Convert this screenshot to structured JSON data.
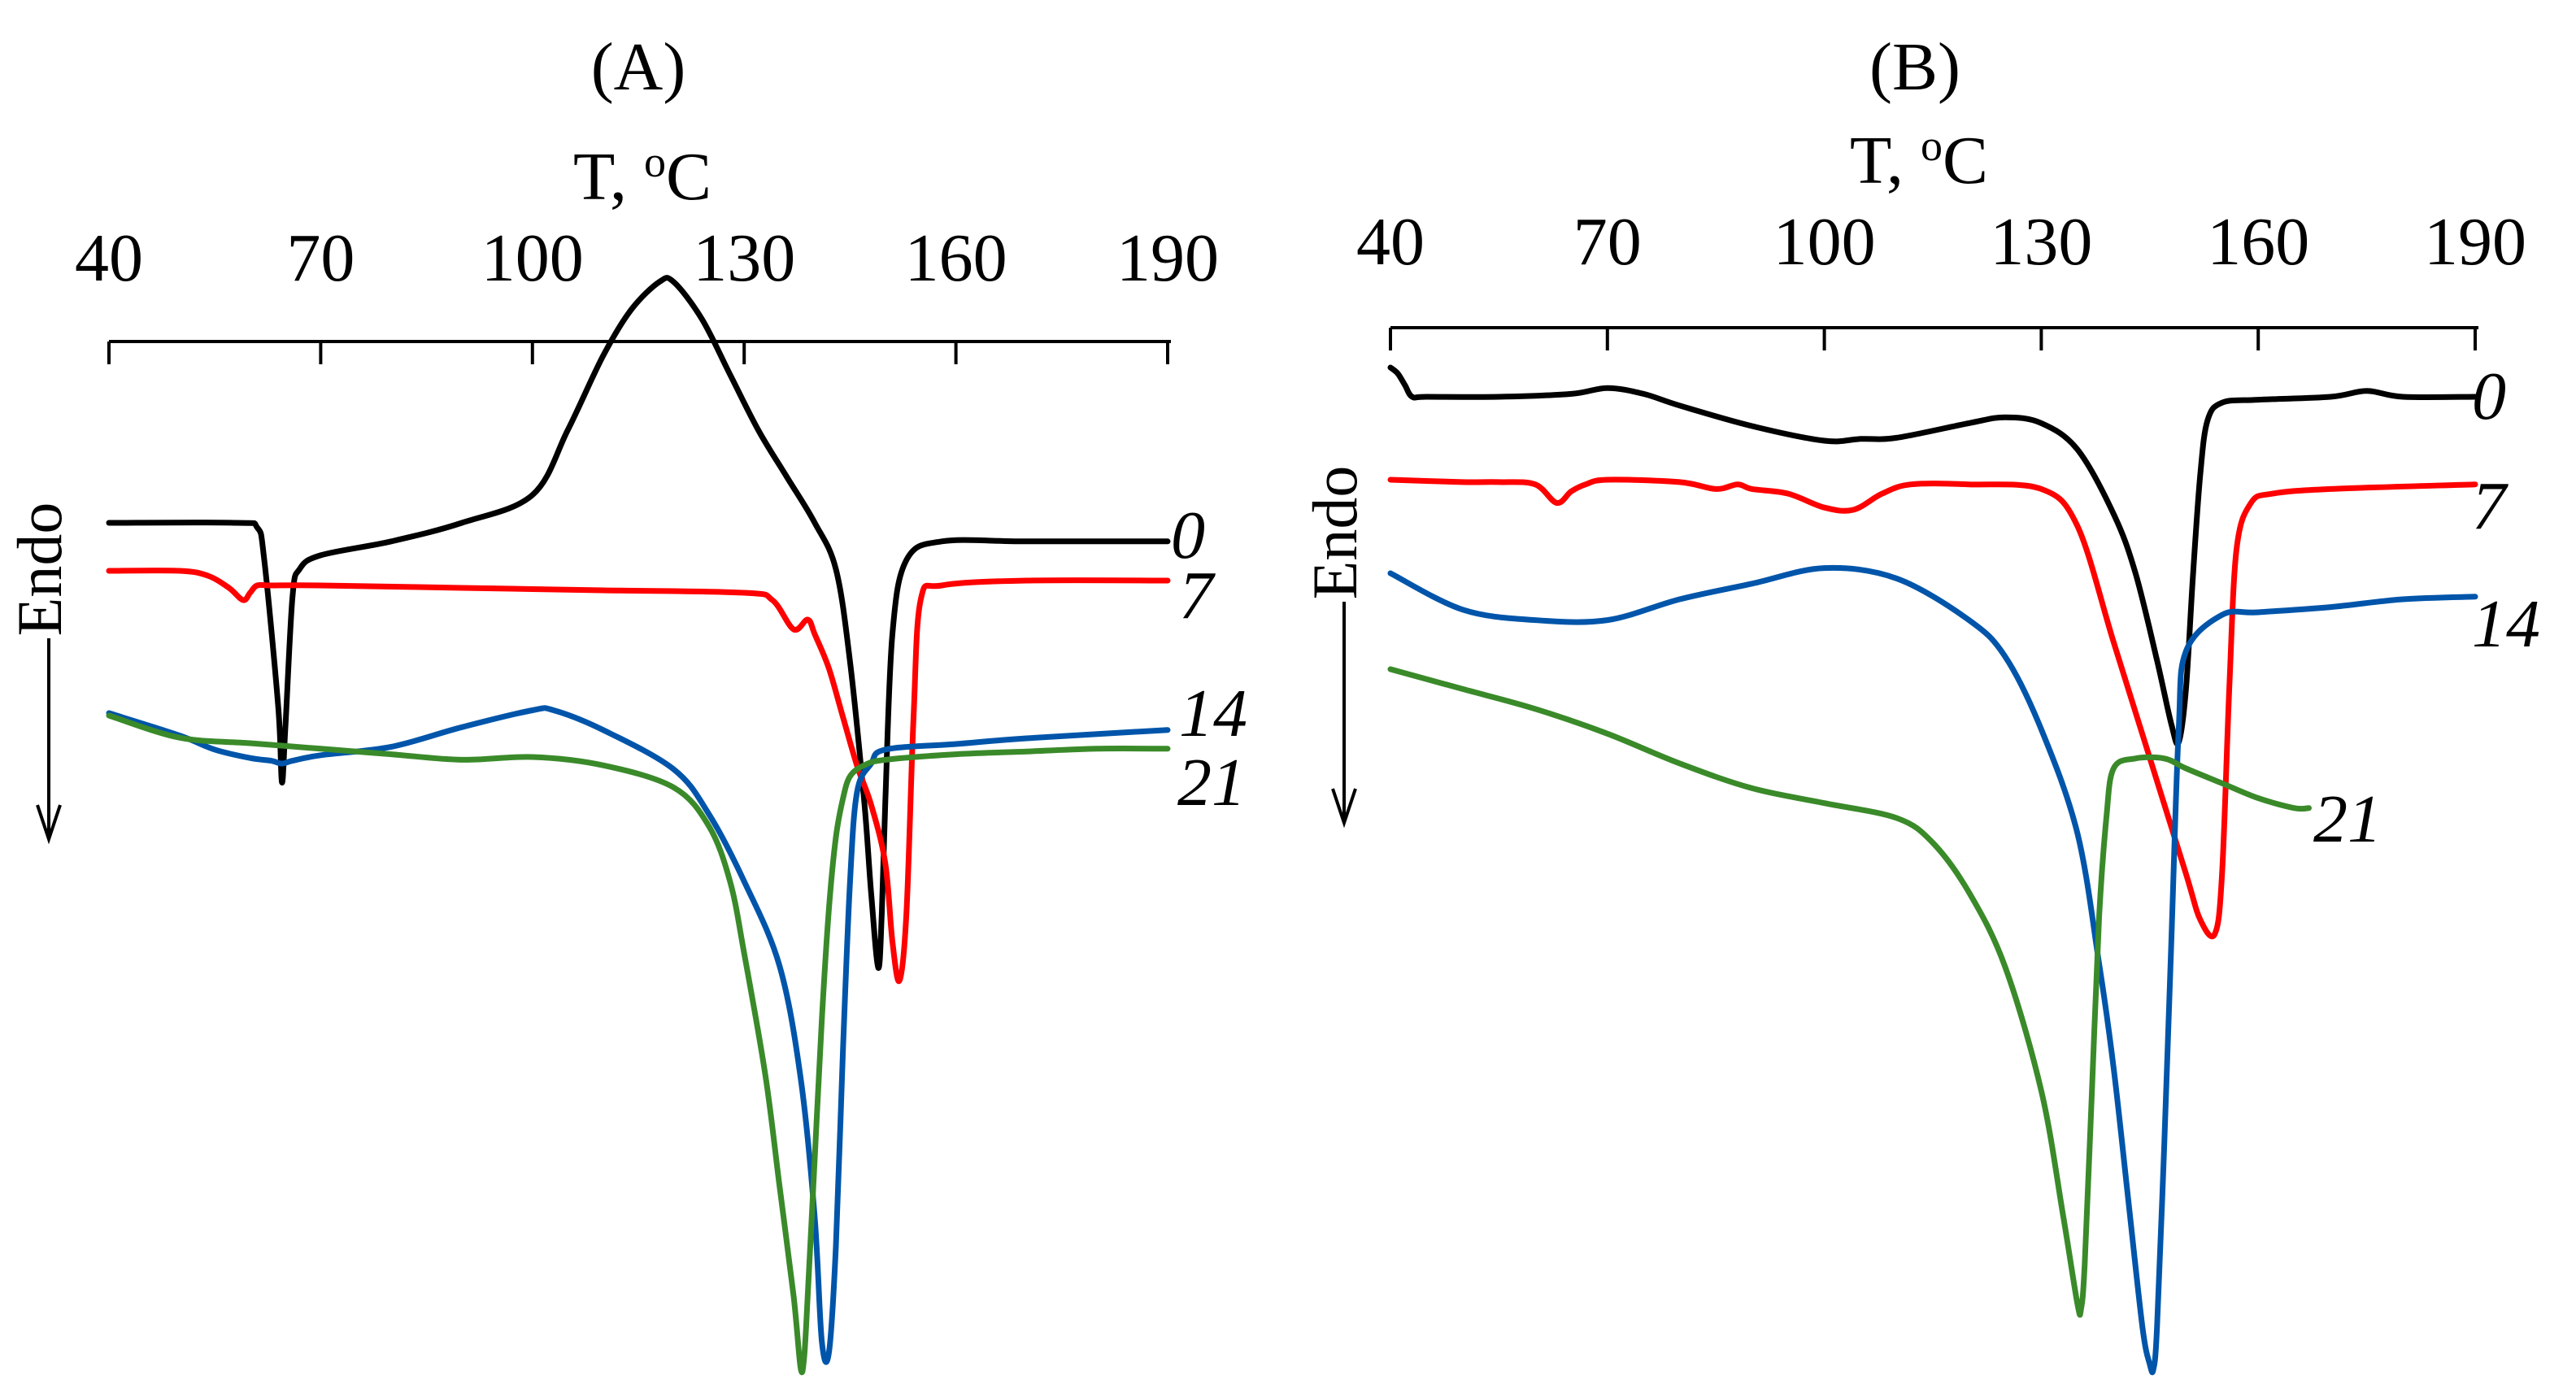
{
  "chart_data": [
    {
      "type": "line",
      "title": "(A)",
      "xlabel": "T, oC",
      "xlabel_parts": {
        "main": "T, ",
        "superscript": "o",
        "unit": "C"
      },
      "ylabel": "Endo",
      "x_axis_position": "top",
      "xlim": [
        40,
        190
      ],
      "xticks": [
        40,
        70,
        100,
        130,
        160,
        190
      ],
      "grid": false,
      "y_units": "arbitrary (DSC heat flow, endotherm downward)",
      "series": [
        {
          "name": "0",
          "color": "#000000",
          "x": [
            40,
            58,
            61,
            62,
            64,
            64.5,
            65,
            66,
            67,
            70,
            80,
            90,
            100,
            105,
            110,
            114,
            118,
            120,
            124,
            128,
            132,
            136,
            140,
            143,
            145,
            147,
            148,
            149,
            149.5,
            150,
            151,
            153,
            158,
            170,
            190
          ],
          "y": [
            0,
            0,
            0.05,
            0.4,
            2.0,
            2.8,
            2.2,
            0.8,
            0.5,
            0.35,
            0.2,
            0,
            -0.3,
            -1.0,
            -1.8,
            -2.3,
            -2.6,
            -2.6,
            -2.2,
            -1.6,
            -1.0,
            -0.5,
            0,
            0.5,
            1.5,
            3.0,
            4.0,
            4.8,
            4.2,
            3.0,
            1.2,
            0.4,
            0.2,
            0.2,
            0.2
          ]
        },
        {
          "name": "7",
          "color": "#ff0000",
          "x": [
            40,
            50,
            54,
            57,
            59,
            60,
            61,
            63,
            70,
            90,
            110,
            130,
            134,
            137,
            139,
            140,
            142,
            144,
            146,
            148,
            150,
            151,
            152,
            153,
            154,
            155,
            158,
            170,
            190
          ],
          "y": [
            0,
            0,
            0.1,
            0.35,
            0.6,
            0.45,
            0.3,
            0.3,
            0.3,
            0.35,
            0.4,
            0.45,
            0.6,
            1.2,
            1.0,
            1.3,
            2.0,
            3.0,
            4.0,
            4.8,
            6.0,
            7.6,
            8.4,
            7.0,
            3.0,
            0.6,
            0.3,
            0.2,
            0.2
          ]
        },
        {
          "name": "14",
          "color": "#0055aa",
          "x": [
            40,
            50,
            55,
            60,
            63,
            64.5,
            66,
            70,
            80,
            90,
            100,
            103,
            110,
            120,
            125,
            130,
            135,
            138,
            140,
            141,
            142,
            143,
            144,
            145,
            146,
            148,
            150,
            160,
            170,
            190
          ],
          "y": [
            0,
            0.4,
            0.65,
            0.8,
            0.85,
            0.9,
            0.85,
            0.75,
            0.6,
            0.25,
            -0.05,
            -0.05,
            0.3,
            1.0,
            1.8,
            3.0,
            4.5,
            6.5,
            9.0,
            11.2,
            11.4,
            9.5,
            6.0,
            3.0,
            1.4,
            0.9,
            0.65,
            0.55,
            0.45,
            0.3
          ]
        },
        {
          "name": "21",
          "color": "#3a8a2a",
          "x": [
            40,
            50,
            60,
            70,
            80,
            90,
            100,
            110,
            120,
            125,
            128,
            130,
            133,
            135,
            137,
            138,
            138.5,
            139,
            140,
            141,
            142,
            143,
            144,
            145,
            147,
            150,
            160,
            170,
            180,
            190
          ],
          "y": [
            0,
            0.4,
            0.5,
            0.6,
            0.7,
            0.8,
            0.75,
            0.9,
            1.3,
            2.0,
            3.0,
            4.3,
            6.5,
            8.5,
            10.5,
            11.8,
            11.6,
            10.5,
            8.0,
            5.5,
            3.5,
            2.2,
            1.5,
            1.1,
            0.9,
            0.8,
            0.7,
            0.65,
            0.6,
            0.6
          ]
        }
      ]
    },
    {
      "type": "line",
      "title": "(B)",
      "xlabel": "T, oC",
      "xlabel_parts": {
        "main": "T, ",
        "superscript": "o",
        "unit": "C"
      },
      "ylabel": "Endo",
      "x_axis_position": "top",
      "xlim": [
        40,
        190
      ],
      "xticks": [
        40,
        70,
        100,
        130,
        160,
        190
      ],
      "grid": false,
      "y_units": "arbitrary (DSC heat flow, endotherm downward)",
      "series": [
        {
          "name": "0",
          "color": "#000000",
          "x": [
            40,
            41,
            42,
            43,
            45,
            55,
            65,
            70,
            75,
            80,
            90,
            100,
            105,
            110,
            120,
            125,
            130,
            135,
            140,
            143,
            146,
            148,
            149,
            150,
            151,
            152,
            153,
            155,
            160,
            170,
            175,
            180,
            190
          ],
          "y": [
            -0.5,
            -0.4,
            -0.2,
            0,
            0,
            0,
            -0.05,
            -0.15,
            -0.05,
            0.15,
            0.5,
            0.75,
            0.72,
            0.7,
            0.45,
            0.35,
            0.45,
            0.9,
            2.0,
            3.0,
            4.5,
            5.6,
            5.9,
            5.0,
            3.0,
            1.3,
            0.4,
            0.1,
            0.05,
            0,
            -0.1,
            0,
            0
          ]
        },
        {
          "name": "7",
          "color": "#ff0000",
          "x": [
            40,
            50,
            55,
            60,
            63,
            65,
            67,
            70,
            80,
            85,
            88,
            90,
            95,
            100,
            104,
            108,
            112,
            120,
            130,
            135,
            140,
            145,
            150,
            152,
            154,
            155,
            156,
            157,
            159,
            162,
            170,
            190
          ],
          "y": [
            0,
            0.05,
            0.05,
            0.1,
            0.5,
            0.25,
            0.1,
            0,
            0.05,
            0.2,
            0.1,
            0.2,
            0.3,
            0.6,
            0.65,
            0.3,
            0.1,
            0.1,
            0.2,
            1.0,
            3.5,
            6.0,
            8.5,
            9.5,
            9.8,
            8.5,
            4.5,
            1.5,
            0.5,
            0.3,
            0.2,
            0.1
          ]
        },
        {
          "name": "14",
          "color": "#0055aa",
          "x": [
            40,
            50,
            60,
            70,
            80,
            90,
            100,
            110,
            120,
            125,
            130,
            135,
            138,
            140,
            142,
            144,
            145,
            145.5,
            146,
            147,
            148,
            149,
            150,
            155,
            160,
            170,
            180,
            190
          ],
          "y": [
            0,
            0.7,
            0.9,
            0.9,
            0.5,
            0.2,
            -0.1,
            0.1,
            0.9,
            1.6,
            3.0,
            5.0,
            7.5,
            9.5,
            12.0,
            14.5,
            15.2,
            15.3,
            14.5,
            11.0,
            7.0,
            3.0,
            1.5,
            0.8,
            0.75,
            0.65,
            0.5,
            0.45
          ]
        },
        {
          "name": "21",
          "color": "#3a8a2a",
          "x": [
            40,
            50,
            60,
            70,
            80,
            90,
            100,
            110,
            115,
            120,
            125,
            130,
            133,
            135,
            135.5,
            136,
            137,
            138,
            139,
            140,
            143,
            147,
            150,
            155,
            160,
            165,
            167
          ],
          "y": [
            0,
            0.4,
            0.8,
            1.3,
            1.9,
            2.4,
            2.7,
            3.0,
            3.5,
            4.5,
            6.0,
            8.5,
            11.0,
            12.8,
            12.9,
            12.0,
            8.5,
            5.0,
            3.0,
            2.0,
            1.8,
            1.8,
            2.0,
            2.3,
            2.6,
            2.8,
            2.8
          ]
        }
      ]
    }
  ]
}
